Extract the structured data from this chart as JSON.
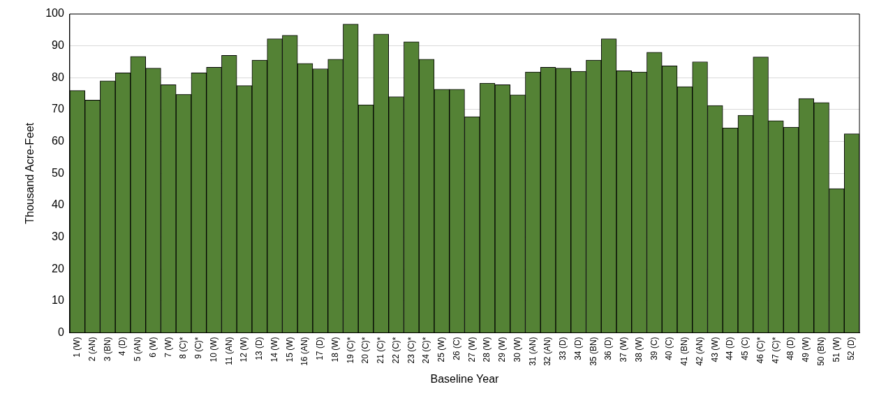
{
  "chart_data": {
    "type": "bar",
    "xlabel": "Baseline Year",
    "ylabel": "Thousand Acre-Feet",
    "categories": [
      "1 (W)",
      "2 (AN)",
      "3 (BN)",
      "4 (D)",
      "5 (AN)",
      "6 (W)",
      "7 (W)",
      "8 (C)*",
      "9 (C)*",
      "10 (W)",
      "11 (AN)",
      "12 (W)",
      "13 (D)",
      "14 (W)",
      "15 (W)",
      "16 (AN)",
      "17 (D)",
      "18 (W)",
      "19 (C)*",
      "20 (C)*",
      "21 (C)*",
      "22 (C)*",
      "23 (C)*",
      "24 (C)*",
      "25 (W)",
      "26 (C)",
      "27 (W)",
      "28 (W)",
      "29 (W)",
      "30 (W)",
      "31 (AN)",
      "32 (AN)",
      "33 (D)",
      "34 (D)",
      "35 (BN)",
      "36 (D)",
      "37 (W)",
      "38 (W)",
      "39 (C)",
      "40 (C)",
      "41 (BN)",
      "42 (AN)",
      "43 (W)",
      "44 (D)",
      "45 (C)",
      "46 (C)*",
      "47 (C)*",
      "48 (D)",
      "49 (W)",
      "50 (BN)",
      "51 (W)",
      "52 (D)"
    ],
    "values": [
      76,
      73,
      79,
      81.5,
      86.7,
      83,
      77.8,
      74.8,
      81.5,
      83.3,
      87,
      77.5,
      85.5,
      92.2,
      93.3,
      84.5,
      82.8,
      85.8,
      96.8,
      71.5,
      93.7,
      74,
      91.3,
      85.8,
      76.4,
      76.4,
      67.8,
      78.3,
      77.8,
      74.6,
      81.8,
      83.3,
      83,
      82,
      85.5,
      92.2,
      82.2,
      81.8,
      88,
      83.7,
      77.2,
      85,
      71.3,
      64.3,
      68.2,
      86.5,
      66.5,
      64.5,
      73.5,
      72.2,
      45.2,
      62.4
    ],
    "color": "#548235",
    "ylim": [
      0,
      100
    ],
    "yticks": [
      0,
      10,
      20,
      30,
      40,
      50,
      60,
      70,
      80,
      90,
      100
    ],
    "grid": "y"
  }
}
